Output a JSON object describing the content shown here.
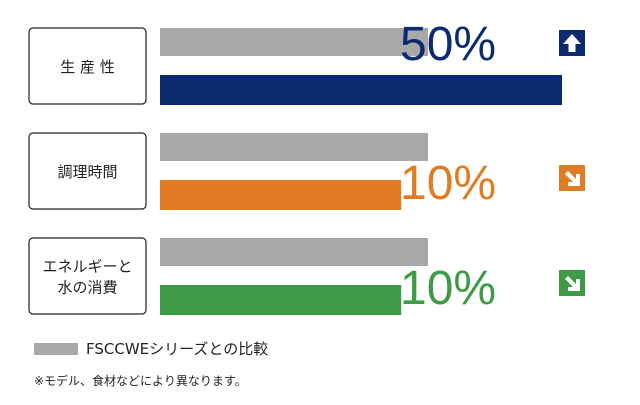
{
  "chart_data": {
    "type": "bar",
    "orientation": "horizontal",
    "categories": [
      {
        "label_lines": [
          "生 産 性"
        ],
        "change_text": "50%",
        "direction": "up",
        "color": "#0b2a6f"
      },
      {
        "label_lines": [
          "調理時間"
        ],
        "change_text": "10%",
        "direction": "down",
        "color": "#e07c24"
      },
      {
        "label_lines": [
          "エネルギーと",
          "水の消費"
        ],
        "change_text": "10%",
        "direction": "down",
        "color": "#3d9b45"
      }
    ],
    "series": [
      {
        "name": "FSCCWEシリーズ",
        "color": "#a8a8a8",
        "values": [
          100,
          100,
          100
        ]
      },
      {
        "name": "",
        "values": [
          150,
          90,
          90
        ]
      }
    ],
    "legend": {
      "label": "FSCCWEシリーズとの比較",
      "placement": "bottom-left"
    },
    "note": "※モデル、食材などにより異なります。"
  }
}
